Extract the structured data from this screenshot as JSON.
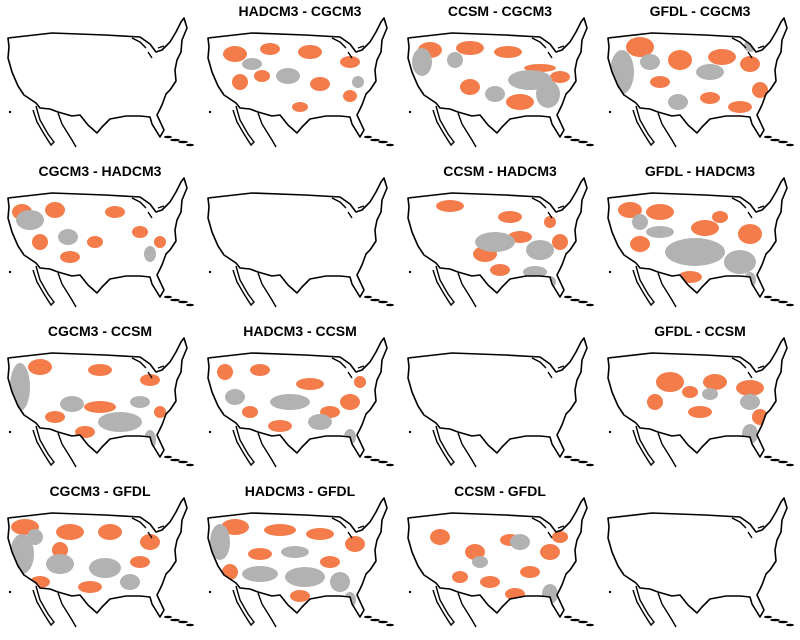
{
  "colors": {
    "orange": "#f47c4b",
    "gray": "#b2b2b2",
    "outline": "#000000",
    "background": "#ffffff"
  },
  "panels": [
    {
      "title": "",
      "blank": true
    },
    {
      "title": "HADCM3 - CGCM3"
    },
    {
      "title": "CCSM - CGCM3"
    },
    {
      "title": "GFDL - CGCM3"
    },
    {
      "title": "CGCM3 - HADCM3"
    },
    {
      "title": "",
      "blank": true
    },
    {
      "title": "CCSM - HADCM3"
    },
    {
      "title": "GFDL - HADCM3"
    },
    {
      "title": "CGCM3 - CCSM"
    },
    {
      "title": "HADCM3 - CCSM"
    },
    {
      "title": "",
      "blank": true
    },
    {
      "title": "GFDL - CCSM"
    },
    {
      "title": "CGCM3 - GFDL"
    },
    {
      "title": "HADCM3 - GFDL"
    },
    {
      "title": "CCSM - GFDL"
    },
    {
      "title": "",
      "blank": true
    }
  ]
}
